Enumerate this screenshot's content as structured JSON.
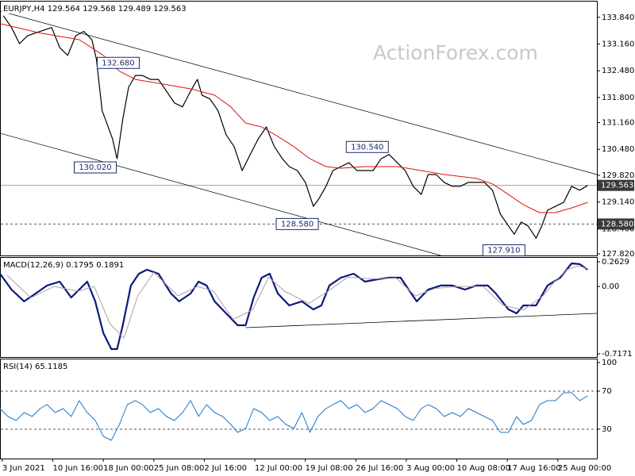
{
  "chart_data": [
    {
      "type": "line",
      "title": "EURJPY,H4 129.564 129.568 129.489 129.563",
      "watermark": "ActionForex.com",
      "xlim": [
        -2,
        518
      ],
      "ylim": [
        127.78,
        134.28
      ],
      "yticks": [
        {
          "value": 133.84,
          "label": "133.840"
        },
        {
          "value": 133.16,
          "label": "133.160"
        },
        {
          "value": 132.48,
          "label": "132.480"
        },
        {
          "value": 131.8,
          "label": "131.800"
        },
        {
          "value": 131.16,
          "label": "131.160"
        },
        {
          "value": 130.48,
          "label": "130.480"
        },
        {
          "value": 129.82,
          "label": "129.820"
        },
        {
          "value": 129.14,
          "label": "129.140"
        },
        {
          "value": 128.46,
          "label": "128.460"
        },
        {
          "value": 127.82,
          "label": "127.820"
        }
      ],
      "series": [
        {
          "color": "#000000",
          "width": 1.2,
          "x": [
            1,
            8,
            15,
            22,
            33,
            43,
            50,
            57,
            64,
            71,
            78,
            82,
            87,
            91,
            96,
            100,
            105,
            110,
            116,
            122,
            129,
            136,
            143,
            150,
            157,
            164,
            170,
            174,
            181,
            188,
            195,
            202,
            209,
            216,
            223,
            230,
            237,
            244,
            250,
            257,
            264,
            271,
            276,
            282,
            288,
            295,
            302,
            309,
            316,
            323,
            330,
            337,
            344,
            351,
            358,
            365,
            371,
            378,
            385,
            392,
            399,
            406,
            413,
            420,
            427,
            434,
            441,
            446,
            452,
            458,
            465,
            470,
            475,
            482,
            489,
            496,
            503,
            510
          ],
          "values": [
            133.88,
            133.58,
            133.17,
            133.37,
            133.48,
            133.58,
            133.07,
            132.87,
            133.37,
            133.48,
            133.27,
            132.77,
            131.46,
            131.15,
            130.75,
            130.24,
            131.25,
            132.06,
            132.36,
            132.36,
            132.26,
            132.26,
            131.96,
            131.66,
            131.56,
            131.96,
            132.26,
            131.86,
            131.76,
            131.46,
            130.85,
            130.55,
            129.94,
            130.35,
            130.75,
            131.05,
            130.55,
            130.24,
            130.04,
            129.94,
            129.64,
            129.03,
            129.23,
            129.54,
            129.94,
            130.04,
            130.14,
            129.94,
            129.94,
            129.94,
            130.24,
            130.35,
            130.14,
            129.94,
            129.54,
            129.33,
            129.84,
            129.84,
            129.64,
            129.54,
            129.54,
            129.64,
            129.64,
            129.64,
            129.44,
            128.83,
            128.53,
            128.32,
            128.63,
            128.53,
            128.22,
            128.53,
            128.93,
            129.03,
            129.13,
            129.54,
            129.44,
            129.563
          ]
        },
        {
          "color": "#e01010",
          "width": 1,
          "x": [
            -2,
            33,
            67,
            88,
            102,
            116,
            136,
            164,
            185,
            199,
            212,
            226,
            240,
            254,
            268,
            282,
            295,
            316,
            344,
            365,
            385,
            413,
            427,
            441,
            454,
            468,
            482,
            496,
            510
          ],
          "values": [
            133.68,
            133.44,
            133.27,
            132.87,
            132.47,
            132.26,
            132.16,
            132.02,
            131.86,
            131.56,
            131.15,
            131.05,
            130.81,
            130.55,
            130.24,
            130.04,
            130.0,
            130.04,
            130.04,
            129.94,
            129.84,
            129.74,
            129.6,
            129.33,
            129.07,
            128.87,
            128.87,
            128.99,
            129.13
          ]
        },
        {
          "color": "#000000",
          "width": 0.7,
          "x": [
            -2,
            518
          ],
          "values": [
            134.0,
            129.84
          ]
        },
        {
          "color": "#000000",
          "width": 0.7,
          "x": [
            -2,
            382
          ],
          "values": [
            130.89,
            127.78
          ]
        }
      ],
      "levels": [
        {
          "value": 129.563,
          "dash": false
        },
        {
          "value": 128.58,
          "label": "128.580",
          "dash": true
        }
      ],
      "annotations": [
        {
          "x": 82,
          "value": 132.68,
          "label": "132.680"
        },
        {
          "x": 100,
          "value": 130.02,
          "label": "130.020"
        },
        {
          "x": 337,
          "value": 130.54,
          "label": "130.540"
        },
        {
          "x": 276,
          "value": 128.58,
          "label": "128.580"
        },
        {
          "x": 456,
          "value": 127.91,
          "label": "127.910"
        }
      ]
    },
    {
      "type": "line",
      "title": "MACD(12,26,9) 0.1795 0.1891",
      "xlim": [
        -2,
        518
      ],
      "ylim": [
        -0.7171,
        0.2629
      ],
      "yticks": [
        0.2629,
        {
          "value": 0,
          "label": "0.00"
        },
        -0.7171
      ],
      "series": [
        {
          "color": "#0a1a7a",
          "width": 2.2,
          "x": [
            -2,
            8,
            19,
            29,
            39,
            50,
            60,
            67,
            74,
            81,
            88,
            95,
            100,
            105,
            112,
            119,
            126,
            136,
            147,
            154,
            164,
            171,
            178,
            185,
            195,
            205,
            212,
            219,
            226,
            233,
            240,
            250,
            261,
            271,
            278,
            285,
            295,
            306,
            316,
            327,
            337,
            347,
            354,
            361,
            371,
            382,
            392,
            403,
            413,
            423,
            430,
            441,
            448,
            454,
            465,
            475,
            486,
            496,
            503,
            510
          ],
          "values": [
            0.136,
            -0.033,
            -0.159,
            -0.075,
            0.01,
            0.052,
            -0.117,
            -0.033,
            0.052,
            -0.159,
            -0.497,
            -0.666,
            -0.666,
            -0.413,
            0.01,
            0.136,
            0.178,
            0.136,
            -0.075,
            -0.159,
            -0.075,
            0.052,
            0.01,
            -0.159,
            -0.286,
            -0.413,
            -0.413,
            -0.117,
            0.094,
            0.136,
            -0.075,
            -0.202,
            -0.159,
            -0.244,
            -0.202,
            0.01,
            0.094,
            0.136,
            0.052,
            0.077,
            0.094,
            0.094,
            -0.033,
            -0.159,
            -0.033,
            0.01,
            0.01,
            -0.033,
            0.01,
            0.01,
            -0.075,
            -0.244,
            -0.286,
            -0.202,
            -0.202,
            0.01,
            0.094,
            0.246,
            0.238,
            0.1795
          ]
        },
        {
          "color": "#b0a0a8",
          "width": 1,
          "x": [
            4,
            25,
            45,
            66,
            80,
            94,
            106,
            118,
            132,
            153,
            170,
            184,
            201,
            218,
            232,
            246,
            267,
            284,
            301,
            322,
            343,
            360,
            377,
            398,
            419,
            436,
            454,
            471,
            481,
            492,
            502,
            510
          ],
          "values": [
            0.12,
            -0.12,
            0.0,
            -0.05,
            0.0,
            -0.4,
            -0.55,
            -0.1,
            0.15,
            -0.1,
            0.0,
            -0.05,
            -0.35,
            -0.25,
            0.1,
            -0.05,
            -0.18,
            -0.05,
            0.1,
            0.08,
            0.09,
            -0.1,
            -0.02,
            0.0,
            0.0,
            -0.2,
            -0.25,
            -0.1,
            0.05,
            0.18,
            0.22,
            0.1891
          ]
        },
        {
          "color": "#000000",
          "width": 0.8,
          "x": [
            212,
            518
          ],
          "values": [
            -0.438,
            -0.286
          ]
        }
      ]
    },
    {
      "type": "line",
      "title": "RSI(14) 65.1185",
      "xlim": [
        -2,
        518
      ],
      "ylim": [
        0,
        100
      ],
      "yticks": [
        100,
        70,
        30
      ],
      "levels": [
        70,
        30
      ],
      "xticks": [
        {
          "value": 0,
          "label": "3 Jun 2021"
        },
        {
          "value": 44,
          "label": "10 Jun 16:00"
        },
        {
          "value": 88,
          "label": "18 Jun 00:00"
        },
        {
          "value": 132,
          "label": "25 Jun 08:00"
        },
        {
          "value": 176,
          "label": "2 Jul 16:00"
        },
        {
          "value": 220,
          "label": "12 Jul 00:00"
        },
        {
          "value": 264,
          "label": "19 Jul 08:00"
        },
        {
          "value": 308,
          "label": "26 Jul 16:00"
        },
        {
          "value": 352,
          "label": "3 Aug 00:00"
        },
        {
          "value": 396,
          "label": "10 Aug 08:00"
        },
        {
          "value": 440,
          "label": "17 Aug 16:00"
        },
        {
          "value": 484,
          "label": "25 Aug 00:00"
        }
      ],
      "series": [
        {
          "color": "#1e78c8",
          "width": 1,
          "x": [
            -2,
            5,
            12,
            19,
            26,
            33,
            39,
            46,
            53,
            60,
            67,
            74,
            81,
            88,
            95,
            102,
            109,
            116,
            122,
            129,
            136,
            143,
            150,
            157,
            164,
            171,
            178,
            185,
            192,
            199,
            205,
            212,
            219,
            226,
            233,
            240,
            247,
            254,
            261,
            268,
            275,
            282,
            288,
            295,
            302,
            309,
            316,
            323,
            330,
            337,
            344,
            351,
            358,
            365,
            371,
            378,
            385,
            392,
            399,
            406,
            413,
            420,
            427,
            434,
            441,
            448,
            454,
            461,
            468,
            475,
            482,
            489,
            496,
            503,
            510
          ],
          "values": [
            51.7,
            43.3,
            39.2,
            47.5,
            43.3,
            51.7,
            55.8,
            47.5,
            51.7,
            43.3,
            60.0,
            47.5,
            39.2,
            22.5,
            18.3,
            35.0,
            55.8,
            60.0,
            55.8,
            47.5,
            51.7,
            43.3,
            39.2,
            47.5,
            60.0,
            43.3,
            55.8,
            47.5,
            43.3,
            35.0,
            26.7,
            30.8,
            51.7,
            47.5,
            39.2,
            43.3,
            35.0,
            30.8,
            47.5,
            26.7,
            43.3,
            51.7,
            55.8,
            60.0,
            51.7,
            55.8,
            47.5,
            51.7,
            60.0,
            55.8,
            51.7,
            43.3,
            39.2,
            51.7,
            55.8,
            51.7,
            43.3,
            47.5,
            43.3,
            51.7,
            47.5,
            43.3,
            39.2,
            26.7,
            26.7,
            43.3,
            35.0,
            39.2,
            55.8,
            60.0,
            60.0,
            68.3,
            68.3,
            60.0,
            65.1185
          ]
        }
      ]
    }
  ]
}
